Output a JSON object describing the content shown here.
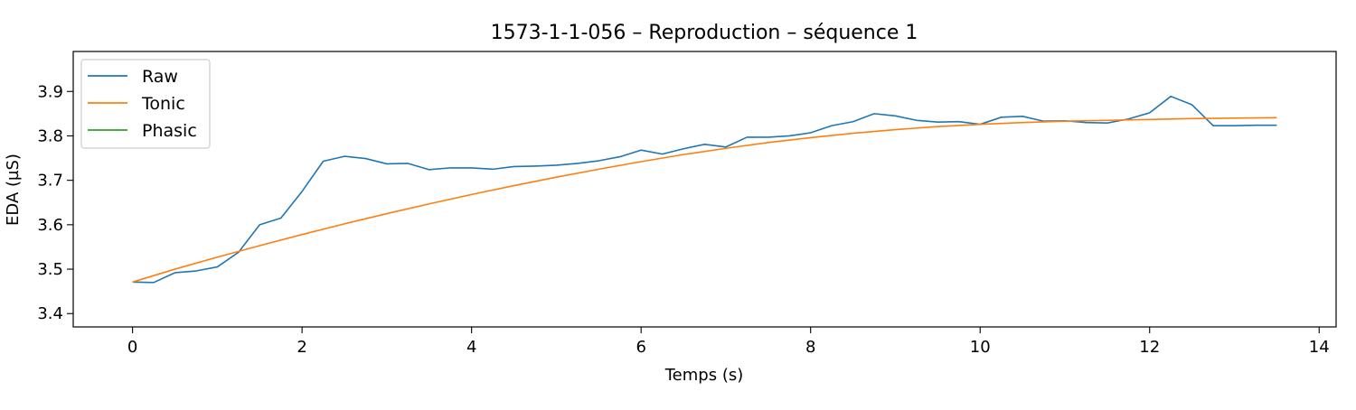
{
  "chart_data": {
    "type": "line",
    "title": "1573-1-1-056 – Reproduction – séquence 1",
    "xlabel": "Temps (s)",
    "ylabel": "EDA (µS)",
    "xlim": [
      -0.7,
      14.2
    ],
    "ylim": [
      3.37,
      3.99
    ],
    "xticks": [
      0,
      2,
      4,
      6,
      8,
      10,
      12,
      14
    ],
    "xtick_labels": [
      "0",
      "2",
      "4",
      "6",
      "8",
      "10",
      "12",
      "14"
    ],
    "yticks": [
      3.4,
      3.5,
      3.6,
      3.7,
      3.8,
      3.9
    ],
    "ytick_labels": [
      "3.4",
      "3.5",
      "3.6",
      "3.7",
      "3.8",
      "3.9"
    ],
    "grid": false,
    "legend_position": "top-left",
    "series": [
      {
        "name": "Raw",
        "color": "#1f77b4",
        "x": [
          0,
          0.25,
          0.5,
          0.75,
          1.0,
          1.25,
          1.5,
          1.75,
          2.0,
          2.25,
          2.5,
          2.75,
          3.0,
          3.25,
          3.5,
          3.75,
          4.0,
          4.25,
          4.5,
          4.75,
          5.0,
          5.25,
          5.5,
          5.75,
          6.0,
          6.25,
          6.5,
          6.75,
          7.0,
          7.25,
          7.5,
          7.75,
          8.0,
          8.25,
          8.5,
          8.75,
          9.0,
          9.25,
          9.5,
          9.75,
          10.0,
          10.25,
          10.5,
          10.75,
          11.0,
          11.25,
          11.5,
          11.75,
          12.0,
          12.25,
          12.5,
          12.75,
          13.0,
          13.25,
          13.5
        ],
        "values": [
          3.471,
          3.47,
          3.492,
          3.496,
          3.505,
          3.538,
          3.6,
          3.615,
          3.675,
          3.743,
          3.754,
          3.749,
          3.737,
          3.738,
          3.724,
          3.728,
          3.728,
          3.725,
          3.731,
          3.732,
          3.734,
          3.738,
          3.744,
          3.753,
          3.768,
          3.759,
          3.771,
          3.781,
          3.775,
          3.797,
          3.797,
          3.8,
          3.807,
          3.823,
          3.832,
          3.85,
          3.845,
          3.835,
          3.831,
          3.832,
          3.826,
          3.842,
          3.844,
          3.833,
          3.834,
          3.83,
          3.829,
          3.838,
          3.852,
          3.889,
          3.87,
          3.823,
          3.823,
          3.824,
          3.824
        ]
      },
      {
        "name": "Tonic",
        "color": "#ff7f0e",
        "x": [
          0,
          0.5,
          1,
          1.5,
          2,
          2.5,
          3,
          3.5,
          4,
          4.5,
          5,
          5.5,
          6,
          6.5,
          7,
          7.5,
          8,
          8.5,
          9,
          9.5,
          10,
          10.5,
          11,
          11.5,
          12,
          12.5,
          13,
          13.5
        ],
        "values": [
          3.471,
          3.5,
          3.527,
          3.553,
          3.578,
          3.602,
          3.625,
          3.647,
          3.668,
          3.688,
          3.707,
          3.725,
          3.742,
          3.758,
          3.772,
          3.785,
          3.796,
          3.806,
          3.814,
          3.821,
          3.826,
          3.83,
          3.833,
          3.835,
          3.837,
          3.839,
          3.84,
          3.841
        ]
      },
      {
        "name": "Phasic",
        "color": "#2ca02c",
        "x": [],
        "values": []
      }
    ]
  }
}
